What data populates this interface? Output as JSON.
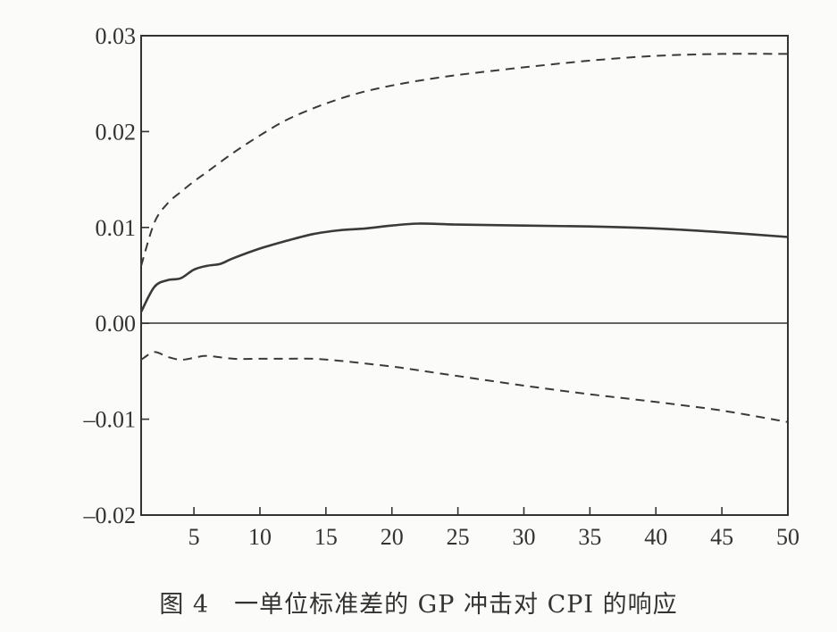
{
  "caption": "图 4　一单位标准差的 GP 冲击对 CPI 的响应",
  "chart_data": {
    "type": "line",
    "title": "",
    "xlabel": "",
    "ylabel": "",
    "xlim": [
      1,
      50
    ],
    "ylim": [
      -0.02,
      0.03
    ],
    "x_ticks": [
      5,
      10,
      15,
      20,
      25,
      30,
      35,
      40,
      45,
      50
    ],
    "x_tick_labels": [
      "5",
      "10",
      "15",
      "20",
      "25",
      "30",
      "35",
      "40",
      "45",
      "50"
    ],
    "y_ticks": [
      -0.02,
      -0.01,
      0.0,
      0.01,
      0.02,
      0.03
    ],
    "y_tick_labels": [
      "–0.02",
      "–0.01",
      "0.00",
      "0.01",
      "0.02",
      "0.03"
    ],
    "zero_line": true,
    "grid": false,
    "legend": "none",
    "series": [
      {
        "style": "solid",
        "x": [
          1,
          2,
          3,
          4,
          5,
          6,
          7,
          8,
          10,
          12,
          14,
          16,
          18,
          20,
          22,
          25,
          30,
          35,
          40,
          45,
          50
        ],
        "y": [
          0.0012,
          0.0038,
          0.0045,
          0.0047,
          0.0056,
          0.006,
          0.0062,
          0.0068,
          0.0078,
          0.0086,
          0.0093,
          0.0097,
          0.0099,
          0.0102,
          0.0104,
          0.0103,
          0.0102,
          0.0101,
          0.0099,
          0.0095,
          0.009
        ]
      },
      {
        "style": "dashed",
        "x": [
          1,
          2,
          3,
          4,
          5,
          6,
          8,
          10,
          12,
          14,
          16,
          18,
          20,
          22,
          25,
          30,
          35,
          40,
          45,
          50
        ],
        "y": [
          0.006,
          0.0105,
          0.0125,
          0.0137,
          0.0148,
          0.0158,
          0.0178,
          0.0196,
          0.0212,
          0.0224,
          0.0234,
          0.0242,
          0.0248,
          0.0253,
          0.0259,
          0.0267,
          0.0274,
          0.0279,
          0.0281,
          0.0281
        ]
      },
      {
        "style": "dashed",
        "x": [
          1,
          2,
          3,
          4,
          5,
          6,
          8,
          10,
          12,
          14,
          16,
          18,
          20,
          22,
          25,
          30,
          35,
          40,
          45,
          50
        ],
        "y": [
          -0.0038,
          -0.003,
          -0.0035,
          -0.0038,
          -0.0036,
          -0.0034,
          -0.0037,
          -0.0037,
          -0.0037,
          -0.0037,
          -0.0039,
          -0.0042,
          -0.0045,
          -0.0049,
          -0.0055,
          -0.0065,
          -0.0074,
          -0.0082,
          -0.0091,
          -0.0103
        ]
      }
    ]
  }
}
